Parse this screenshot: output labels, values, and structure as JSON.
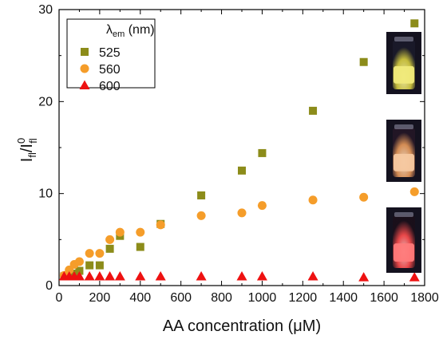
{
  "chart_data": {
    "type": "scatter",
    "xlabel": "AA concentration (μM)",
    "ylabel_main": "I",
    "ylabel_sub": "fl",
    "ylabel_sup": "0",
    "xlim": [
      0,
      1800
    ],
    "ylim": [
      0,
      30
    ],
    "xticks": [
      0,
      200,
      400,
      600,
      800,
      1000,
      1200,
      1400,
      1600,
      1800
    ],
    "yticks": [
      0,
      10,
      20,
      30
    ],
    "legend": {
      "title_main": "λ",
      "title_sub": "em",
      "title_rest": " (nm)",
      "placement": "top-left"
    },
    "series": [
      {
        "name": "525",
        "marker": "square",
        "color": "#8c8c1a",
        "x": [
          25,
          50,
          75,
          100,
          150,
          200,
          250,
          300,
          400,
          500,
          700,
          900,
          1000,
          1250,
          1500,
          1750
        ],
        "y": [
          1.0,
          1.1,
          1.3,
          1.6,
          2.2,
          2.2,
          4.0,
          5.4,
          4.2,
          6.7,
          9.8,
          12.5,
          14.4,
          19.0,
          24.3,
          28.5
        ]
      },
      {
        "name": "560",
        "marker": "circle",
        "color": "#f59d2a",
        "x": [
          25,
          50,
          75,
          100,
          150,
          200,
          250,
          300,
          400,
          500,
          700,
          900,
          1000,
          1250,
          1500,
          1750
        ],
        "y": [
          1.1,
          1.7,
          2.3,
          2.6,
          3.5,
          3.5,
          5.0,
          5.8,
          5.8,
          6.6,
          7.6,
          7.9,
          8.7,
          9.3,
          9.6,
          10.2
        ]
      },
      {
        "name": "600",
        "marker": "triangle",
        "color": "#ee1111",
        "x": [
          25,
          50,
          75,
          100,
          150,
          200,
          250,
          300,
          400,
          500,
          700,
          900,
          1000,
          1250,
          1500,
          1750
        ],
        "y": [
          1.0,
          1.0,
          1.0,
          1.0,
          1.0,
          1.0,
          1.0,
          1.0,
          1.0,
          1.0,
          1.0,
          1.0,
          1.0,
          1.0,
          0.9,
          0.9
        ]
      }
    ],
    "insets": [
      {
        "name": "yellow-vial-photo",
        "liquid_color": "#f0ea7a"
      },
      {
        "name": "orange-vial-photo",
        "liquid_color": "#f5c8a0"
      },
      {
        "name": "red-vial-photo",
        "liquid_color": "#ff7a7a"
      }
    ]
  }
}
